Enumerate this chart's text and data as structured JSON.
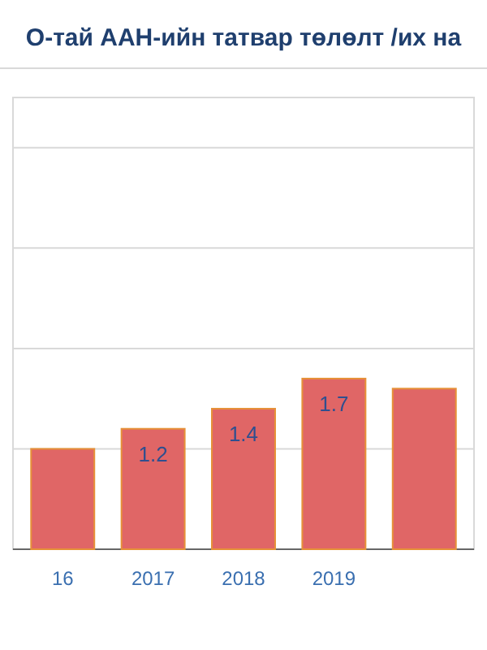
{
  "chart_data": {
    "type": "bar",
    "title": "О-тай ААН-ийн татвар төлөлт /их на",
    "categories": [
      "16",
      "2017",
      "2018",
      "2019",
      null
    ],
    "values": [
      1.0,
      1.2,
      1.4,
      1.7,
      1.6
    ],
    "value_labels": [
      null,
      "1.2",
      "1.4",
      "1.7",
      null
    ],
    "color": "#e06666",
    "ylim": [
      0,
      4.5
    ],
    "yticks": [
      {
        "value": 1,
        "label": null
      },
      {
        "value": 2,
        "label": null
      },
      {
        "value": 3,
        "label": null
      },
      {
        "value": 4,
        "label": null
      }
    ],
    "tick_labels": "x",
    "grid": "y"
  }
}
